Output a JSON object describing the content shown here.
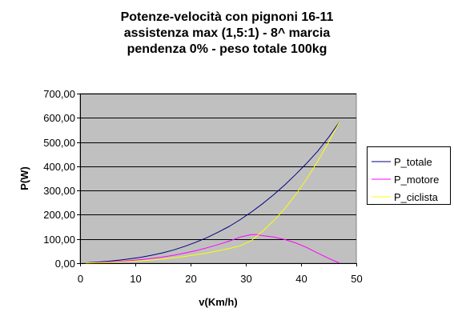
{
  "chart_data": {
    "type": "line",
    "title_lines": [
      "Potenze-velocità con pignoni 16-11",
      "assistenza max (1,5:1) - 8^ marcia",
      "pendenza 0% - peso totale 100kg"
    ],
    "xlabel": "v(Km/h)",
    "ylabel": "P(W)",
    "xlim": [
      0,
      50
    ],
    "ylim": [
      0,
      700
    ],
    "x_ticks": [
      0,
      10,
      20,
      30,
      40,
      50
    ],
    "x_tick_labels": [
      "0",
      "10",
      "20",
      "30",
      "40",
      "50"
    ],
    "y_ticks": [
      0,
      100,
      200,
      300,
      400,
      500,
      600,
      700
    ],
    "y_tick_labels": [
      "0,00",
      "100,00",
      "200,00",
      "300,00",
      "400,00",
      "500,00",
      "600,00",
      "700,00"
    ],
    "plot_background": "#c0c0c0",
    "grid": "horizontal",
    "legend_position": "right",
    "series": [
      {
        "name": "P_totale",
        "color": "#000080",
        "x": [
          1,
          3,
          5,
          7,
          9,
          11,
          13,
          15,
          17,
          19,
          21,
          23,
          25,
          27,
          29,
          31,
          33,
          35,
          37,
          39,
          41,
          43,
          45,
          47
        ],
        "y": [
          1.5,
          4.5,
          8,
          12.5,
          18,
          24.5,
          33,
          43,
          55,
          70,
          87,
          106,
          128,
          152,
          180,
          211,
          245,
          282,
          322,
          366,
          412,
          462,
          520,
          585
        ]
      },
      {
        "name": "P_motore",
        "color": "#ff00ff",
        "x": [
          1,
          3,
          5,
          7,
          9,
          11,
          13,
          15,
          17,
          19,
          21,
          23,
          25,
          27,
          29,
          31,
          32,
          33,
          35,
          37,
          39,
          41,
          43,
          45,
          47
        ],
        "y": [
          1,
          2.7,
          4.8,
          7.5,
          10.8,
          14.7,
          19.8,
          25.8,
          33,
          42,
          52,
          63.6,
          76.8,
          91.2,
          108,
          118,
          118,
          114,
          108,
          98,
          84,
          65,
          42,
          20,
          0
        ]
      },
      {
        "name": "P_ciclista",
        "color": "#ffff00",
        "x": [
          1,
          3,
          5,
          7,
          9,
          11,
          13,
          15,
          17,
          19,
          21,
          23,
          25,
          27,
          29,
          31,
          33,
          35,
          37,
          39,
          41,
          43,
          45,
          47
        ],
        "y": [
          0.5,
          1.8,
          3.2,
          5,
          7.2,
          9.8,
          13.2,
          17.2,
          22,
          28,
          35,
          42.4,
          51.2,
          60.8,
          72,
          93,
          131,
          174,
          224,
          282,
          347,
          420,
          500,
          585
        ]
      }
    ]
  }
}
